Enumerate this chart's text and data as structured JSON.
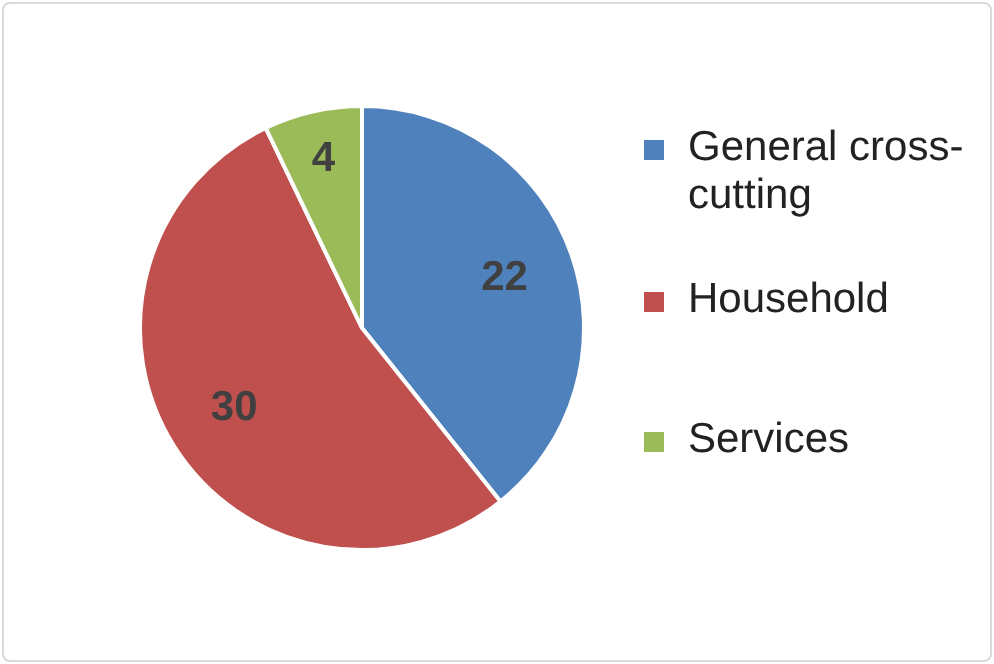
{
  "chart_data": {
    "type": "pie",
    "categories": [
      "General cross-cutting",
      "Household",
      "Services"
    ],
    "values": [
      22,
      30,
      4
    ],
    "colors": [
      "#4f81bd",
      "#c0504d",
      "#9bbb59"
    ],
    "data_labels": true,
    "legend": "right"
  }
}
